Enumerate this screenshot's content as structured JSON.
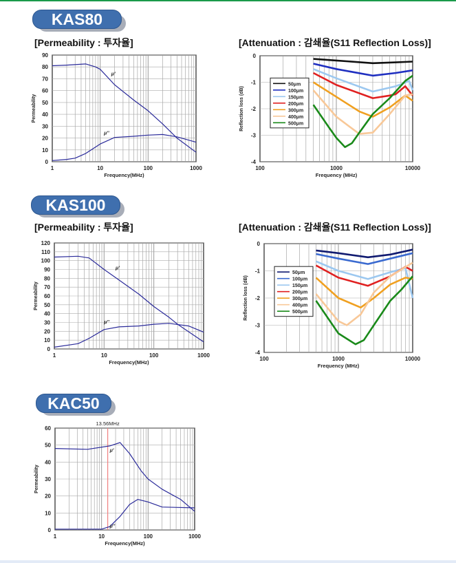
{
  "sections": [
    {
      "badge": "KAS80",
      "perm_heading": "[Permeability : 투자율]",
      "atten_heading": "[Attenuation : 감쇄율(S11 Reflection Loss)]"
    },
    {
      "badge": "KAS100",
      "perm_heading": "[Permeability : 투자율]",
      "atten_heading": "[Attenuation : 감쇄율(S11 Reflection Loss)]"
    },
    {
      "badge": "KAC50"
    }
  ],
  "chart_data": [
    {
      "id": "kas80-perm",
      "type": "line",
      "xlabel": "Frequency(MHz)",
      "ylabel": "Permeability",
      "xscale": "log",
      "xlim": [
        1,
        1000
      ],
      "ylim": [
        0,
        90
      ],
      "ystep": 10,
      "xticks": [
        "1",
        "10",
        "100",
        "1000"
      ],
      "grid": true,
      "series": [
        {
          "name": "μ'",
          "color": "#2a2a9a",
          "points": [
            [
              1,
              81
            ],
            [
              2,
              81.5
            ],
            [
              5,
              82.5
            ],
            [
              8,
              80
            ],
            [
              10,
              78
            ],
            [
              20,
              65
            ],
            [
              50,
              52
            ],
            [
              100,
              43
            ],
            [
              200,
              32
            ],
            [
              400,
              20
            ],
            [
              1000,
              8
            ]
          ]
        },
        {
          "name": "μ''",
          "color": "#2a2a9a",
          "points": [
            [
              1,
              1
            ],
            [
              2,
              2
            ],
            [
              3,
              3
            ],
            [
              5,
              7
            ],
            [
              10,
              15
            ],
            [
              20,
              20.5
            ],
            [
              50,
              21.5
            ],
            [
              100,
              22.5
            ],
            [
              200,
              23
            ],
            [
              400,
              21
            ],
            [
              1000,
              16.5
            ]
          ]
        }
      ],
      "annotations": [
        {
          "text": "μ'",
          "x": 17,
          "y": 73
        },
        {
          "text": "μ''",
          "x": 12,
          "y": 23
        }
      ]
    },
    {
      "id": "kas80-atten",
      "type": "line",
      "xlabel": "Frequency (MHz)",
      "ylabel": "Reflection loss (dB)",
      "xscale": "log",
      "xlim": [
        100,
        10000
      ],
      "ylim": [
        -4,
        0
      ],
      "ystep": 1,
      "xticks": [
        "100",
        "1000",
        "10000"
      ],
      "grid": true,
      "legend": "left",
      "series": [
        {
          "name": "50μm",
          "color": "#111111",
          "points": [
            [
              500,
              -0.12
            ],
            [
              1000,
              -0.18
            ],
            [
              3000,
              -0.28
            ],
            [
              6000,
              -0.25
            ],
            [
              10000,
              -0.22
            ]
          ]
        },
        {
          "name": "100μm",
          "color": "#1f2fc0",
          "points": [
            [
              500,
              -0.3
            ],
            [
              1000,
              -0.5
            ],
            [
              3000,
              -0.75
            ],
            [
              6000,
              -0.65
            ],
            [
              10000,
              -0.55
            ]
          ]
        },
        {
          "name": "150μm",
          "color": "#9cc8f0",
          "points": [
            [
              500,
              -0.5
            ],
            [
              1000,
              -0.85
            ],
            [
              3000,
              -1.35
            ],
            [
              6000,
              -1.15
            ],
            [
              9000,
              -0.95
            ],
            [
              10000,
              -1.3
            ]
          ]
        },
        {
          "name": "200μm",
          "color": "#e02020",
          "points": [
            [
              500,
              -0.65
            ],
            [
              1000,
              -1.1
            ],
            [
              3000,
              -1.6
            ],
            [
              5000,
              -1.5
            ],
            [
              6000,
              -1.45
            ],
            [
              8000,
              -1.15
            ],
            [
              10000,
              -1.5
            ]
          ]
        },
        {
          "name": "300μm",
          "color": "#f0a020",
          "points": [
            [
              500,
              -1.0
            ],
            [
              1000,
              -1.55
            ],
            [
              2000,
              -2.1
            ],
            [
              3000,
              -2.3
            ],
            [
              5000,
              -1.95
            ],
            [
              8000,
              -1.5
            ],
            [
              10000,
              -1.7
            ]
          ]
        },
        {
          "name": "400μm",
          "color": "#f8c898",
          "points": [
            [
              500,
              -1.3
            ],
            [
              1000,
              -2.3
            ],
            [
              2000,
              -2.95
            ],
            [
              3000,
              -2.9
            ],
            [
              5000,
              -2.2
            ],
            [
              8000,
              -1.5
            ],
            [
              10000,
              -1.45
            ]
          ]
        },
        {
          "name": "500μm",
          "color": "#1a8a1a",
          "points": [
            [
              500,
              -1.85
            ],
            [
              800,
              -2.7
            ],
            [
              1000,
              -3.1
            ],
            [
              1300,
              -3.45
            ],
            [
              1600,
              -3.3
            ],
            [
              2000,
              -2.9
            ],
            [
              3000,
              -2.2
            ],
            [
              5000,
              -1.6
            ],
            [
              8000,
              -0.95
            ],
            [
              10000,
              -0.75
            ]
          ]
        }
      ]
    },
    {
      "id": "kas100-perm",
      "type": "line",
      "xlabel": "Frequency(MHz)",
      "ylabel": "Permeability",
      "xscale": "log",
      "xlim": [
        1,
        1000
      ],
      "ylim": [
        0,
        120
      ],
      "ystep": 10,
      "xticks": [
        "1",
        "10",
        "100",
        "1000"
      ],
      "grid": true,
      "series": [
        {
          "name": "μ'",
          "color": "#2a2a9a",
          "points": [
            [
              1,
              104
            ],
            [
              3,
              105
            ],
            [
              5,
              103
            ],
            [
              10,
              90
            ],
            [
              20,
              78
            ],
            [
              50,
              62
            ],
            [
              100,
              48
            ],
            [
              200,
              36
            ],
            [
              300,
              28
            ],
            [
              1000,
              8
            ]
          ]
        },
        {
          "name": "μ''",
          "color": "#2a2a9a",
          "points": [
            [
              1,
              2
            ],
            [
              3,
              6
            ],
            [
              5,
              12
            ],
            [
              10,
              22
            ],
            [
              20,
              25
            ],
            [
              50,
              26
            ],
            [
              100,
              28
            ],
            [
              200,
              29
            ],
            [
              500,
              26
            ],
            [
              1000,
              19
            ]
          ]
        }
      ],
      "annotations": [
        {
          "text": "μ'",
          "x": 17,
          "y": 90
        },
        {
          "text": "μ''",
          "x": 10,
          "y": 29
        }
      ]
    },
    {
      "id": "kas100-atten",
      "type": "line",
      "xlabel": "Frequency (MHz)",
      "ylabel": "Reflection loss (dB)",
      "xscale": "log",
      "xlim": [
        100,
        10000
      ],
      "ylim": [
        -4,
        0
      ],
      "ystep": 1,
      "xticks": [
        "100",
        "1000",
        "10000"
      ],
      "grid": true,
      "legend": "left",
      "series": [
        {
          "name": "50μm",
          "color": "#101a70",
          "points": [
            [
              500,
              -0.25
            ],
            [
              1000,
              -0.35
            ],
            [
              2500,
              -0.5
            ],
            [
              5000,
              -0.4
            ],
            [
              10000,
              -0.22
            ]
          ]
        },
        {
          "name": "100μm",
          "color": "#3a6ad0",
          "points": [
            [
              500,
              -0.38
            ],
            [
              1000,
              -0.55
            ],
            [
              2500,
              -0.75
            ],
            [
              5000,
              -0.55
            ],
            [
              10000,
              -0.35
            ]
          ]
        },
        {
          "name": "150μm",
          "color": "#9cc8f0",
          "points": [
            [
              500,
              -0.65
            ],
            [
              1000,
              -1.0
            ],
            [
              2500,
              -1.3
            ],
            [
              5000,
              -1.05
            ],
            [
              8000,
              -0.9
            ],
            [
              10000,
              -2.0
            ]
          ]
        },
        {
          "name": "200μm",
          "color": "#e02020",
          "points": [
            [
              500,
              -0.8
            ],
            [
              1000,
              -1.25
            ],
            [
              2500,
              -1.55
            ],
            [
              5000,
              -1.2
            ],
            [
              8000,
              -0.85
            ],
            [
              10000,
              -1.0
            ]
          ]
        },
        {
          "name": "300μm",
          "color": "#f0a020",
          "points": [
            [
              500,
              -1.25
            ],
            [
              1000,
              -2.0
            ],
            [
              2000,
              -2.35
            ],
            [
              3000,
              -2.0
            ],
            [
              5000,
              -1.5
            ],
            [
              8000,
              -1.25
            ],
            [
              10000,
              -1.3
            ]
          ]
        },
        {
          "name": "400μm",
          "color": "#f8c898",
          "points": [
            [
              500,
              -1.85
            ],
            [
              1000,
              -2.85
            ],
            [
              1300,
              -3.0
            ],
            [
              2000,
              -2.6
            ],
            [
              3000,
              -1.8
            ],
            [
              5000,
              -1.2
            ],
            [
              10000,
              -0.7
            ]
          ]
        },
        {
          "name": "500μm",
          "color": "#1a8a1a",
          "points": [
            [
              500,
              -2.1
            ],
            [
              1000,
              -3.3
            ],
            [
              1700,
              -3.7
            ],
            [
              2200,
              -3.55
            ],
            [
              3000,
              -3.0
            ],
            [
              5000,
              -2.1
            ],
            [
              7000,
              -1.7
            ],
            [
              10000,
              -1.2
            ]
          ]
        }
      ]
    },
    {
      "id": "kac50-perm",
      "type": "line",
      "xlabel": "Frequency(MHz)",
      "ylabel": "Permeability",
      "xscale": "log",
      "xlim": [
        1,
        1000
      ],
      "ylim": [
        0,
        60
      ],
      "ystep": 10,
      "xticks": [
        "1",
        "10",
        "100",
        "1000"
      ],
      "grid": true,
      "marker": {
        "x": 13.56,
        "label": "13.56MHz",
        "color": "#f08080"
      },
      "series": [
        {
          "name": "μ'",
          "color": "#2a2a9a",
          "points": [
            [
              1,
              48
            ],
            [
              5,
              47.5
            ],
            [
              15,
              49.5
            ],
            [
              25,
              51.5
            ],
            [
              40,
              45
            ],
            [
              70,
              35
            ],
            [
              100,
              30
            ],
            [
              200,
              24
            ],
            [
              500,
              18
            ],
            [
              1000,
              11
            ]
          ]
        },
        {
          "name": "μ''",
          "color": "#2a2a9a",
          "points": [
            [
              1,
              0.5
            ],
            [
              10,
              0.5
            ],
            [
              15,
              2
            ],
            [
              25,
              8
            ],
            [
              40,
              15
            ],
            [
              60,
              18
            ],
            [
              100,
              16.5
            ],
            [
              200,
              13.5
            ],
            [
              1000,
              13
            ]
          ]
        }
      ],
      "annotations": [
        {
          "text": "μ'",
          "x": 15,
          "y": 46
        },
        {
          "text": "μ''",
          "x": 15,
          "y": 1.5
        }
      ]
    }
  ]
}
